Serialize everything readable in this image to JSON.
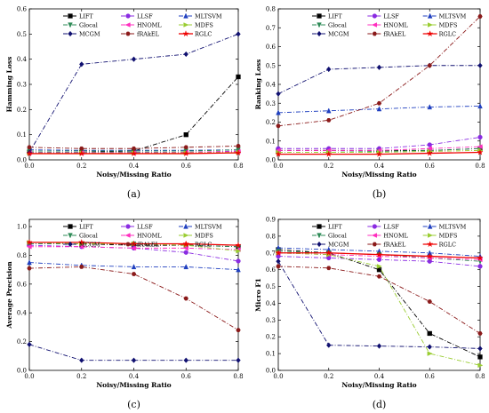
{
  "chart_data": [
    {
      "type": "line",
      "panel_label": "(a)",
      "xlabel": "Noisy/Missing Ratio",
      "ylabel": "Hamming Loss",
      "x": [
        0.0,
        0.2,
        0.4,
        0.6,
        0.8
      ],
      "x_ticks": [
        "0.0",
        "0.2",
        "0.4",
        "0.6",
        "0.8"
      ],
      "y_ticks": [
        "0.0",
        "0.1",
        "0.2",
        "0.3",
        "0.4",
        "0.5",
        "0.6"
      ],
      "xlim": [
        0.0,
        0.8
      ],
      "ylim": [
        0.0,
        0.6
      ],
      "legend": "top-left",
      "series": [
        {
          "name": "LIFT",
          "color": "#000000",
          "marker": "square",
          "dash": "5 2 1 2",
          "values": [
            0.03,
            0.03,
            0.035,
            0.1,
            0.33
          ]
        },
        {
          "name": "LLSF",
          "color": "#8a2be2",
          "marker": "circle",
          "dash": "5 2 1 2",
          "values": [
            0.03,
            0.03,
            0.03,
            0.03,
            0.035
          ]
        },
        {
          "name": "MLTSVM",
          "color": "#1f3fbf",
          "marker": "triangle-up",
          "dash": "5 2 1 2",
          "values": [
            0.04,
            0.038,
            0.038,
            0.038,
            0.04
          ]
        },
        {
          "name": "Glocal",
          "color": "#2e8b57",
          "marker": "triangle-down",
          "dash": "5 2 1 2",
          "values": [
            0.035,
            0.035,
            0.035,
            0.035,
            0.04
          ]
        },
        {
          "name": "HNOML",
          "color": "#ff2fbf",
          "marker": "triangle-left",
          "dash": "5 2 1 2",
          "values": [
            0.028,
            0.028,
            0.028,
            0.03,
            0.033
          ]
        },
        {
          "name": "MDFS",
          "color": "#9acd32",
          "marker": "triangle-right",
          "dash": "5 2 1 2",
          "values": [
            0.028,
            0.028,
            0.028,
            0.028,
            0.03
          ]
        },
        {
          "name": "MCGM",
          "color": "#101070",
          "marker": "diamond",
          "dash": "5 2 1 2",
          "values": [
            0.03,
            0.38,
            0.4,
            0.42,
            0.5
          ]
        },
        {
          "name": "fRAkEL",
          "color": "#8b1a1a",
          "marker": "hexagon",
          "dash": "5 2 1 2",
          "values": [
            0.05,
            0.045,
            0.045,
            0.05,
            0.055
          ]
        },
        {
          "name": "RGLC",
          "color": "#ee0000",
          "marker": "star",
          "dash": "",
          "values": [
            0.025,
            0.025,
            0.025,
            0.025,
            0.028
          ]
        }
      ]
    },
    {
      "type": "line",
      "panel_label": "(b)",
      "xlabel": "Noisy/Missing Ratio",
      "ylabel": "Ranking Loss",
      "x": [
        0.0,
        0.2,
        0.4,
        0.6,
        0.8
      ],
      "x_ticks": [
        "0.0",
        "0.2",
        "0.4",
        "0.6",
        "0.8"
      ],
      "y_ticks": [
        "0.0",
        "0.1",
        "0.2",
        "0.3",
        "0.4",
        "0.5",
        "0.6",
        "0.7",
        "0.8"
      ],
      "xlim": [
        0.0,
        0.8
      ],
      "ylim": [
        0.0,
        0.8
      ],
      "legend": "top-left",
      "series": [
        {
          "name": "LIFT",
          "color": "#000000",
          "marker": "square",
          "dash": "5 2 1 2",
          "values": [
            0.05,
            0.05,
            0.05,
            0.05,
            0.06
          ]
        },
        {
          "name": "LLSF",
          "color": "#8a2be2",
          "marker": "circle",
          "dash": "5 2 1 2",
          "values": [
            0.06,
            0.06,
            0.06,
            0.08,
            0.12
          ]
        },
        {
          "name": "MLTSVM",
          "color": "#1f3fbf",
          "marker": "triangle-up",
          "dash": "5 2 1 2",
          "values": [
            0.25,
            0.26,
            0.27,
            0.28,
            0.285
          ]
        },
        {
          "name": "Glocal",
          "color": "#2e8b57",
          "marker": "triangle-down",
          "dash": "5 2 1 2",
          "values": [
            0.04,
            0.04,
            0.045,
            0.05,
            0.06
          ]
        },
        {
          "name": "HNOML",
          "color": "#ff2fbf",
          "marker": "triangle-left",
          "dash": "5 2 1 2",
          "values": [
            0.05,
            0.05,
            0.05,
            0.06,
            0.07
          ]
        },
        {
          "name": "MDFS",
          "color": "#9acd32",
          "marker": "triangle-right",
          "dash": "5 2 1 2",
          "values": [
            0.04,
            0.04,
            0.04,
            0.045,
            0.05
          ]
        },
        {
          "name": "MCGM",
          "color": "#101070",
          "marker": "diamond",
          "dash": "5 2 1 2",
          "values": [
            0.35,
            0.48,
            0.49,
            0.5,
            0.5
          ]
        },
        {
          "name": "fRAkEL",
          "color": "#8b1a1a",
          "marker": "hexagon",
          "dash": "5 2 1 2",
          "values": [
            0.18,
            0.21,
            0.3,
            0.5,
            0.76
          ]
        },
        {
          "name": "RGLC",
          "color": "#ee0000",
          "marker": "star",
          "dash": "",
          "values": [
            0.03,
            0.03,
            0.03,
            0.035,
            0.04
          ]
        }
      ]
    },
    {
      "type": "line",
      "panel_label": "(c)",
      "xlabel": "Noisy/Missing Ratio",
      "ylabel": "Average Precision",
      "x": [
        0.0,
        0.2,
        0.4,
        0.6,
        0.8
      ],
      "x_ticks": [
        "0.0",
        "0.2",
        "0.4",
        "0.6",
        "0.8"
      ],
      "y_ticks": [
        "0.0",
        "0.2",
        "0.4",
        "0.6",
        "0.8",
        "1.0"
      ],
      "xlim": [
        0.0,
        0.8
      ],
      "ylim": [
        0.0,
        1.05
      ],
      "legend": "top-left",
      "series": [
        {
          "name": "LIFT",
          "color": "#000000",
          "marker": "square",
          "dash": "5 2 1 2",
          "values": [
            0.88,
            0.88,
            0.87,
            0.87,
            0.86
          ]
        },
        {
          "name": "LLSF",
          "color": "#8a2be2",
          "marker": "circle",
          "dash": "5 2 1 2",
          "values": [
            0.87,
            0.86,
            0.85,
            0.82,
            0.76
          ]
        },
        {
          "name": "MLTSVM",
          "color": "#1f3fbf",
          "marker": "triangle-up",
          "dash": "5 2 1 2",
          "values": [
            0.75,
            0.73,
            0.72,
            0.72,
            0.7
          ]
        },
        {
          "name": "Glocal",
          "color": "#2e8b57",
          "marker": "triangle-down",
          "dash": "5 2 1 2",
          "values": [
            0.88,
            0.88,
            0.88,
            0.87,
            0.86
          ]
        },
        {
          "name": "HNOML",
          "color": "#ff2fbf",
          "marker": "triangle-left",
          "dash": "5 2 1 2",
          "values": [
            0.86,
            0.86,
            0.85,
            0.85,
            0.84
          ]
        },
        {
          "name": "MDFS",
          "color": "#9acd32",
          "marker": "triangle-right",
          "dash": "5 2 1 2",
          "values": [
            0.89,
            0.88,
            0.88,
            0.87,
            0.83
          ]
        },
        {
          "name": "MCGM",
          "color": "#101070",
          "marker": "diamond",
          "dash": "5 2 1 2",
          "values": [
            0.18,
            0.07,
            0.07,
            0.07,
            0.07
          ]
        },
        {
          "name": "fRAkEL",
          "color": "#8b1a1a",
          "marker": "hexagon",
          "dash": "5 2 1 2",
          "values": [
            0.71,
            0.72,
            0.67,
            0.5,
            0.28
          ]
        },
        {
          "name": "RGLC",
          "color": "#ee0000",
          "marker": "star",
          "dash": "",
          "values": [
            0.89,
            0.89,
            0.88,
            0.88,
            0.87
          ]
        }
      ]
    },
    {
      "type": "line",
      "panel_label": "(d)",
      "xlabel": "Noisy/Missing Ratio",
      "ylabel": "Micro F1",
      "x": [
        0.0,
        0.2,
        0.4,
        0.6,
        0.8
      ],
      "x_ticks": [
        "0.0",
        "0.2",
        "0.4",
        "0.6",
        "0.8"
      ],
      "y_ticks": [
        "0.0",
        "0.1",
        "0.2",
        "0.3",
        "0.4",
        "0.5",
        "0.6",
        "0.7",
        "0.8",
        "0.9"
      ],
      "xlim": [
        0.0,
        0.8
      ],
      "ylim": [
        0.0,
        0.9
      ],
      "legend": "top-left",
      "series": [
        {
          "name": "LIFT",
          "color": "#000000",
          "marker": "square",
          "dash": "5 2 1 2",
          "values": [
            0.72,
            0.7,
            0.6,
            0.22,
            0.08
          ]
        },
        {
          "name": "LLSF",
          "color": "#8a2be2",
          "marker": "circle",
          "dash": "5 2 1 2",
          "values": [
            0.68,
            0.67,
            0.66,
            0.65,
            0.62
          ]
        },
        {
          "name": "MLTSVM",
          "color": "#1f3fbf",
          "marker": "triangle-up",
          "dash": "5 2 1 2",
          "values": [
            0.73,
            0.72,
            0.71,
            0.7,
            0.68
          ]
        },
        {
          "name": "Glocal",
          "color": "#2e8b57",
          "marker": "triangle-down",
          "dash": "5 2 1 2",
          "values": [
            0.71,
            0.7,
            0.69,
            0.67,
            0.65
          ]
        },
        {
          "name": "HNOML",
          "color": "#ff2fbf",
          "marker": "triangle-left",
          "dash": "5 2 1 2",
          "values": [
            0.7,
            0.69,
            0.68,
            0.67,
            0.66
          ]
        },
        {
          "name": "MDFS",
          "color": "#9acd32",
          "marker": "triangle-right",
          "dash": "5 2 1 2",
          "values": [
            0.7,
            0.69,
            0.62,
            0.1,
            0.03
          ]
        },
        {
          "name": "MCGM",
          "color": "#101070",
          "marker": "diamond",
          "dash": "5 2 1 2",
          "values": [
            0.65,
            0.15,
            0.145,
            0.14,
            0.13
          ]
        },
        {
          "name": "fRAkEL",
          "color": "#8b1a1a",
          "marker": "hexagon",
          "dash": "5 2 1 2",
          "values": [
            0.62,
            0.61,
            0.56,
            0.41,
            0.22
          ]
        },
        {
          "name": "RGLC",
          "color": "#ee0000",
          "marker": "star",
          "dash": "",
          "values": [
            0.7,
            0.7,
            0.69,
            0.68,
            0.67
          ]
        }
      ]
    }
  ]
}
